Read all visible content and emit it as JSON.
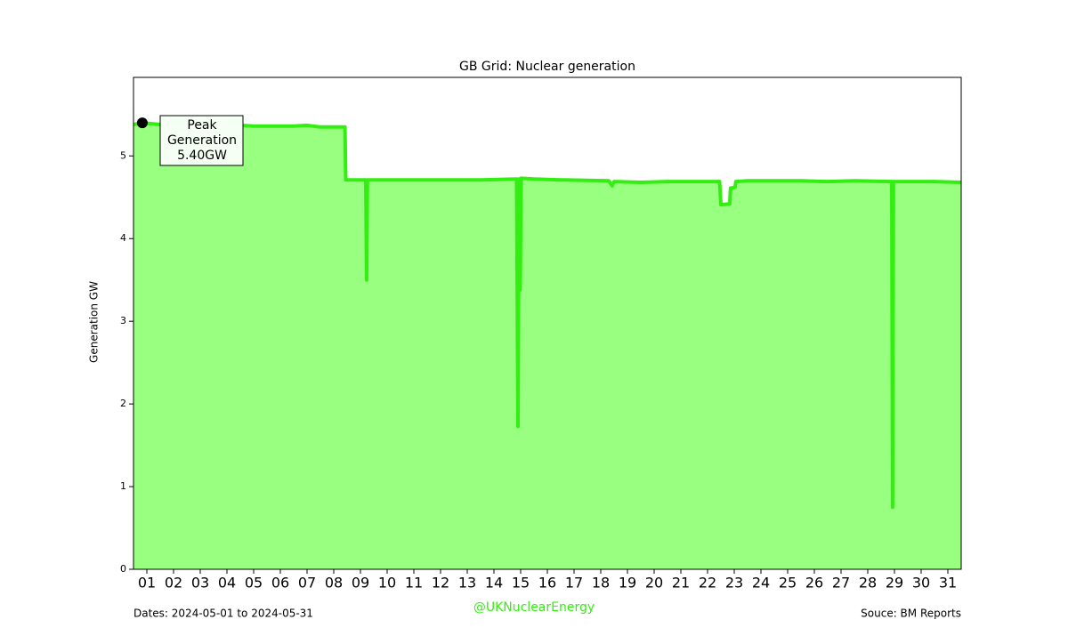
{
  "chart_data": {
    "type": "area",
    "title": "GB Grid: Nuclear generation",
    "y_label": "Generation GW",
    "footer_left": "Dates: 2024-05-01 to 2024-05-31",
    "footer_center": "@UKNuclearEnergy",
    "footer_right": "Souce: BM Reports",
    "annotation": [
      "Peak",
      "Generation",
      "5.40GW"
    ],
    "peak_index": 1,
    "line_color": "#33ee11",
    "fill_color": "#99ff80",
    "xlim": [
      1,
      32
    ],
    "xticks": [
      {
        "value": 1.5,
        "label": "01"
      },
      {
        "value": 2.5,
        "label": "02"
      },
      {
        "value": 3.5,
        "label": "03"
      },
      {
        "value": 4.5,
        "label": "04"
      },
      {
        "value": 5.5,
        "label": "05"
      },
      {
        "value": 6.5,
        "label": "06"
      },
      {
        "value": 7.5,
        "label": "07"
      },
      {
        "value": 8.5,
        "label": "08"
      },
      {
        "value": 9.5,
        "label": "09"
      },
      {
        "value": 10.5,
        "label": "10"
      },
      {
        "value": 11.5,
        "label": "11"
      },
      {
        "value": 12.5,
        "label": "12"
      },
      {
        "value": 13.5,
        "label": "13"
      },
      {
        "value": 14.5,
        "label": "14"
      },
      {
        "value": 15.5,
        "label": "15"
      },
      {
        "value": 16.5,
        "label": "16"
      },
      {
        "value": 17.5,
        "label": "17"
      },
      {
        "value": 18.5,
        "label": "18"
      },
      {
        "value": 19.5,
        "label": "19"
      },
      {
        "value": 20.5,
        "label": "20"
      },
      {
        "value": 21.5,
        "label": "21"
      },
      {
        "value": 22.5,
        "label": "22"
      },
      {
        "value": 23.5,
        "label": "23"
      },
      {
        "value": 24.5,
        "label": "24"
      },
      {
        "value": 25.5,
        "label": "25"
      },
      {
        "value": 26.5,
        "label": "26"
      },
      {
        "value": 27.5,
        "label": "27"
      },
      {
        "value": 28.5,
        "label": "28"
      },
      {
        "value": 29.5,
        "label": "29"
      },
      {
        "value": 30.5,
        "label": "30"
      },
      {
        "value": 31.5,
        "label": "31"
      }
    ],
    "ylim": [
      0,
      5.95
    ],
    "yticks": [
      0,
      1,
      2,
      3,
      4,
      5
    ],
    "x": [
      1.0,
      1.33,
      2,
      3,
      4,
      5,
      5.5,
      6,
      7,
      7.5,
      8,
      8.92,
      8.95,
      9.7,
      9.73,
      9.76,
      11,
      12,
      13,
      14,
      15.35,
      15.4,
      15.44,
      15.48,
      15.52,
      16,
      17,
      18.8,
      18.93,
      19,
      20,
      21,
      22,
      22.95,
      23.0,
      23.33,
      23.36,
      23.53,
      23.56,
      24,
      25,
      26,
      27,
      28,
      29.4,
      29.43,
      29.46,
      30,
      31,
      32
    ],
    "series": [
      {
        "values": [
          5.38,
          5.4,
          5.38,
          5.37,
          5.38,
          5.37,
          5.36,
          5.36,
          5.36,
          5.37,
          5.35,
          5.35,
          4.71,
          4.71,
          3.5,
          4.71,
          4.71,
          4.71,
          4.71,
          4.71,
          4.72,
          1.73,
          4.72,
          3.38,
          4.73,
          4.72,
          4.71,
          4.7,
          4.64,
          4.69,
          4.68,
          4.69,
          4.69,
          4.69,
          4.41,
          4.42,
          4.61,
          4.62,
          4.69,
          4.7,
          4.7,
          4.7,
          4.69,
          4.7,
          4.69,
          0.75,
          4.69,
          4.69,
          4.69,
          4.68
        ]
      }
    ]
  }
}
